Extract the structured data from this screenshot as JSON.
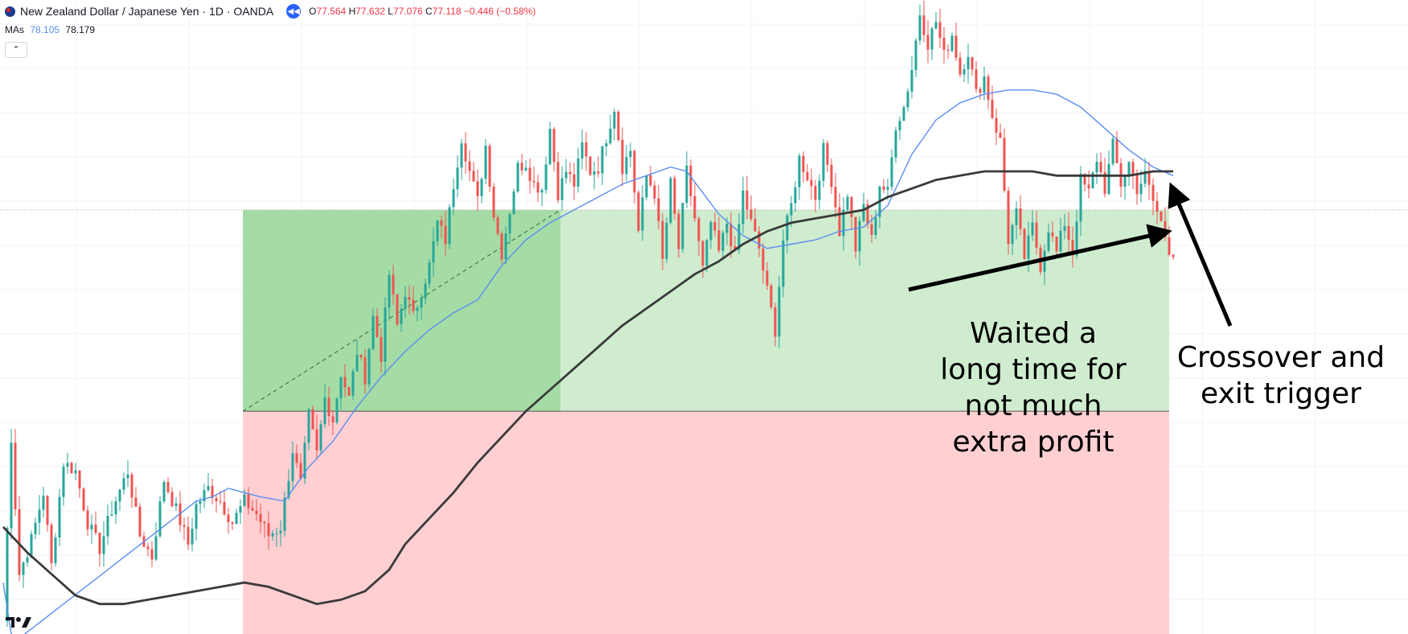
{
  "header": {
    "symbol": "New Zealand Dollar / Japanese Yen · 1D · OANDA",
    "o_label": "O",
    "o": "77.564",
    "h_label": "H",
    "h": "77.632",
    "l_label": "L",
    "l": "77.076",
    "c_label": "C",
    "c": "77.118",
    "change": "−0.446 (−0.58%)"
  },
  "indicators": {
    "label": "MAs",
    "ma_fast": "78.105",
    "ma_slow": "78.179"
  },
  "annotations": {
    "left_note": [
      "Waited a",
      "long time for",
      "not much",
      "extra profit"
    ],
    "right_note": [
      "Crossover and",
      "exit trigger"
    ]
  },
  "colors": {
    "up": "#26a69a",
    "down": "#ef5350",
    "ma_fast": "#5b8def",
    "ma_slow": "#3a3a3a",
    "profit_zone": "#a5dca5",
    "profit_zone_light": "#cfeccf",
    "loss_zone": "#ffcfd2",
    "arrow": "#000000"
  },
  "icons": {
    "collapse": "chevron-up-icon",
    "replay": "rewind-icon",
    "logo": "tradingview-logo"
  },
  "chart_data": {
    "type": "candlestick",
    "title": "New Zealand Dollar / Japanese Yen · 1D · OANDA",
    "xlabel": "",
    "ylabel": "",
    "grid": true,
    "ylim": [
      72.0,
      86.8
    ],
    "position": {
      "entry_price": 77.2,
      "target_price": 81.9,
      "stop_price": 72.0
    },
    "waypoints": [
      [
        0,
        72.3
      ],
      [
        2,
        76.6
      ],
      [
        4,
        73.4
      ],
      [
        7,
        74.2
      ],
      [
        10,
        75.3
      ],
      [
        12,
        73.6
      ],
      [
        15,
        76.0
      ],
      [
        18,
        75.8
      ],
      [
        21,
        74.6
      ],
      [
        24,
        74.0
      ],
      [
        27,
        74.9
      ],
      [
        31,
        75.8
      ],
      [
        34,
        74.3
      ],
      [
        37,
        73.8
      ],
      [
        40,
        75.6
      ],
      [
        43,
        74.9
      ],
      [
        46,
        74.1
      ],
      [
        48,
        75.0
      ],
      [
        51,
        75.4
      ],
      [
        54,
        75.1
      ],
      [
        57,
        74.6
      ],
      [
        60,
        75.1
      ],
      [
        63,
        74.8
      ],
      [
        66,
        74.3
      ],
      [
        69,
        74.5
      ],
      [
        72,
        76.3
      ],
      [
        74,
        75.5
      ],
      [
        76,
        77.1
      ],
      [
        78,
        76.2
      ],
      [
        80,
        77.5
      ],
      [
        82,
        77.0
      ],
      [
        84,
        78.1
      ],
      [
        86,
        77.5
      ],
      [
        88,
        78.6
      ],
      [
        90,
        78.0
      ],
      [
        92,
        79.4
      ],
      [
        94,
        78.5
      ],
      [
        96,
        80.4
      ],
      [
        98,
        79.2
      ],
      [
        100,
        80.0
      ],
      [
        102,
        79.4
      ],
      [
        104,
        80.0
      ],
      [
        106,
        80.6
      ],
      [
        108,
        81.6
      ],
      [
        110,
        81.2
      ],
      [
        112,
        82.5
      ],
      [
        114,
        83.6
      ],
      [
        116,
        82.8
      ],
      [
        118,
        82.1
      ],
      [
        120,
        83.4
      ],
      [
        122,
        81.8
      ],
      [
        124,
        80.9
      ],
      [
        126,
        81.9
      ],
      [
        128,
        82.9
      ],
      [
        130,
        83.0
      ],
      [
        132,
        82.5
      ],
      [
        134,
        82.4
      ],
      [
        136,
        83.8
      ],
      [
        138,
        82.3
      ],
      [
        140,
        82.8
      ],
      [
        142,
        82.5
      ],
      [
        144,
        83.4
      ],
      [
        146,
        82.8
      ],
      [
        148,
        82.9
      ],
      [
        150,
        83.6
      ],
      [
        152,
        84.3
      ],
      [
        154,
        82.9
      ],
      [
        156,
        83.3
      ],
      [
        158,
        81.4
      ],
      [
        160,
        82.7
      ],
      [
        162,
        82.3
      ],
      [
        164,
        80.7
      ],
      [
        166,
        82.5
      ],
      [
        168,
        81.0
      ],
      [
        170,
        82.8
      ],
      [
        172,
        81.7
      ],
      [
        174,
        80.5
      ],
      [
        176,
        81.6
      ],
      [
        178,
        80.9
      ],
      [
        180,
        81.6
      ],
      [
        182,
        80.8
      ],
      [
        184,
        82.3
      ],
      [
        186,
        81.6
      ],
      [
        188,
        81.0
      ],
      [
        190,
        80.0
      ],
      [
        192,
        79.1
      ],
      [
        194,
        81.2
      ],
      [
        196,
        82.0
      ],
      [
        198,
        83.1
      ],
      [
        200,
        82.7
      ],
      [
        202,
        82.2
      ],
      [
        204,
        83.3
      ],
      [
        206,
        82.6
      ],
      [
        208,
        81.4
      ],
      [
        210,
        82.3
      ],
      [
        212,
        81.0
      ],
      [
        214,
        82.0
      ],
      [
        216,
        81.2
      ],
      [
        218,
        82.5
      ],
      [
        220,
        82.3
      ],
      [
        222,
        83.9
      ],
      [
        224,
        84.3
      ],
      [
        226,
        85.2
      ],
      [
        228,
        86.5
      ],
      [
        230,
        85.8
      ],
      [
        232,
        86.3
      ],
      [
        234,
        85.5
      ],
      [
        236,
        86.0
      ],
      [
        238,
        85.1
      ],
      [
        240,
        85.6
      ],
      [
        242,
        84.6
      ],
      [
        244,
        85.0
      ],
      [
        246,
        84.1
      ],
      [
        248,
        83.5
      ],
      [
        250,
        81.2
      ],
      [
        252,
        81.8
      ],
      [
        254,
        80.8
      ],
      [
        256,
        81.5
      ],
      [
        258,
        80.6
      ],
      [
        260,
        81.5
      ],
      [
        262,
        80.9
      ],
      [
        264,
        81.6
      ],
      [
        266,
        80.9
      ],
      [
        268,
        82.6
      ],
      [
        270,
        82.3
      ],
      [
        272,
        83.1
      ],
      [
        274,
        82.4
      ],
      [
        276,
        83.4
      ],
      [
        278,
        82.5
      ],
      [
        280,
        83.0
      ],
      [
        282,
        82.4
      ],
      [
        284,
        82.7
      ],
      [
        286,
        82.1
      ],
      [
        288,
        81.6
      ],
      [
        290,
        81.0
      ],
      [
        291,
        80.8
      ]
    ],
    "ma_fast": [
      [
        0,
        73.2
      ],
      [
        2,
        72.0
      ],
      [
        4,
        71.9
      ],
      [
        48,
        75.1
      ],
      [
        52,
        75.2
      ],
      [
        56,
        75.4
      ],
      [
        60,
        75.3
      ],
      [
        64,
        75.2
      ],
      [
        70,
        75.1
      ],
      [
        76,
        75.9
      ],
      [
        82,
        76.5
      ],
      [
        88,
        77.3
      ],
      [
        94,
        78.0
      ],
      [
        100,
        78.6
      ],
      [
        106,
        79.1
      ],
      [
        112,
        79.5
      ],
      [
        118,
        79.8
      ],
      [
        124,
        80.6
      ],
      [
        130,
        81.2
      ],
      [
        136,
        81.6
      ],
      [
        142,
        81.9
      ],
      [
        148,
        82.2
      ],
      [
        154,
        82.5
      ],
      [
        160,
        82.7
      ],
      [
        166,
        82.9
      ],
      [
        170,
        82.8
      ],
      [
        174,
        82.3
      ],
      [
        178,
        81.8
      ],
      [
        184,
        81.3
      ],
      [
        190,
        81.0
      ],
      [
        196,
        81.1
      ],
      [
        202,
        81.2
      ],
      [
        208,
        81.4
      ],
      [
        214,
        81.5
      ],
      [
        220,
        82.0
      ],
      [
        226,
        83.2
      ],
      [
        232,
        84.0
      ],
      [
        238,
        84.4
      ],
      [
        244,
        84.6
      ],
      [
        250,
        84.7
      ],
      [
        256,
        84.7
      ],
      [
        262,
        84.6
      ],
      [
        268,
        84.3
      ],
      [
        274,
        83.8
      ],
      [
        280,
        83.3
      ],
      [
        286,
        82.9
      ],
      [
        291,
        82.7
      ]
    ],
    "ma_slow": [
      [
        0,
        74.5
      ],
      [
        6,
        73.9
      ],
      [
        12,
        73.4
      ],
      [
        18,
        72.9
      ],
      [
        24,
        72.7
      ],
      [
        30,
        72.7
      ],
      [
        36,
        72.8
      ],
      [
        42,
        72.9
      ],
      [
        48,
        73.0
      ],
      [
        54,
        73.1
      ],
      [
        60,
        73.2
      ],
      [
        66,
        73.1
      ],
      [
        72,
        72.9
      ],
      [
        78,
        72.7
      ],
      [
        84,
        72.8
      ],
      [
        90,
        73.0
      ],
      [
        96,
        73.5
      ],
      [
        100,
        74.1
      ],
      [
        106,
        74.7
      ],
      [
        112,
        75.3
      ],
      [
        118,
        76.0
      ],
      [
        124,
        76.6
      ],
      [
        130,
        77.2
      ],
      [
        136,
        77.7
      ],
      [
        142,
        78.2
      ],
      [
        148,
        78.7
      ],
      [
        154,
        79.2
      ],
      [
        160,
        79.6
      ],
      [
        166,
        80.0
      ],
      [
        172,
        80.4
      ],
      [
        178,
        80.7
      ],
      [
        184,
        81.1
      ],
      [
        190,
        81.4
      ],
      [
        196,
        81.6
      ],
      [
        202,
        81.7
      ],
      [
        208,
        81.8
      ],
      [
        214,
        81.9
      ],
      [
        220,
        82.2
      ],
      [
        226,
        82.4
      ],
      [
        232,
        82.6
      ],
      [
        238,
        82.7
      ],
      [
        244,
        82.8
      ],
      [
        250,
        82.8
      ],
      [
        256,
        82.8
      ],
      [
        262,
        82.7
      ],
      [
        268,
        82.7
      ],
      [
        274,
        82.7
      ],
      [
        280,
        82.7
      ],
      [
        286,
        82.8
      ],
      [
        291,
        82.8
      ]
    ],
    "markers": {
      "entry_index": 56,
      "exit_index": 242
    }
  }
}
